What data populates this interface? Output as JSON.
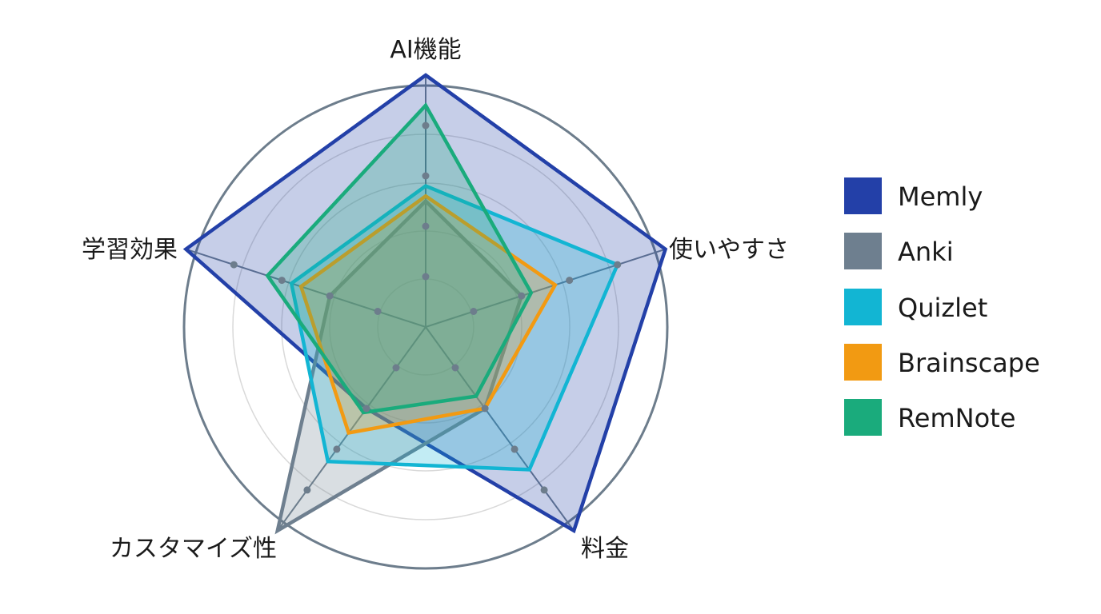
{
  "chart_data": {
    "type": "radar",
    "title": "",
    "axes": [
      "AI機能",
      "使いやすさ",
      "料金",
      "カスタマイズ性",
      "学習効果"
    ],
    "r_range": [
      0,
      5
    ],
    "grid": true,
    "legend_position": "right",
    "series": [
      {
        "name": "Memly",
        "color": "#2340a8",
        "values": [
          5,
          5,
          5,
          2,
          5
        ]
      },
      {
        "name": "Anki",
        "color": "#6e7f8f",
        "values": [
          2.5,
          2,
          2,
          5,
          2
        ]
      },
      {
        "name": "Quizlet",
        "color": "#12b5d3",
        "values": [
          2.8,
          4,
          3.5,
          3.3,
          2.8
        ]
      },
      {
        "name": "Brainscape",
        "color": "#f29a12",
        "values": [
          2.6,
          2.7,
          2,
          2.6,
          2.6
        ]
      },
      {
        "name": "RemNote",
        "color": "#1aab7c",
        "values": [
          4.4,
          2.2,
          1.7,
          2.1,
          3.3
        ]
      }
    ]
  }
}
